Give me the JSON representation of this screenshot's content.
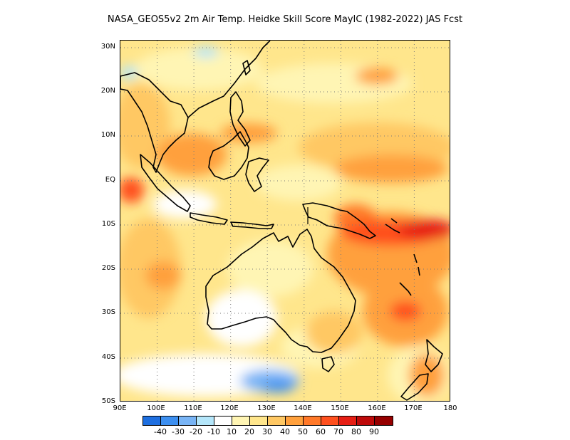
{
  "title": "NASA_GEOS5v2  2m Air Temp. Heidke Skill Score MayIC (1982-2022) JAS Fcst",
  "map": {
    "lat_labels": [
      "30N",
      "20N",
      "10N",
      "EQ",
      "10S",
      "20S",
      "30S",
      "40S",
      "50S"
    ],
    "lon_labels": [
      "90E",
      "100E",
      "110E",
      "120E",
      "130E",
      "140E",
      "150E",
      "160E",
      "170E",
      "180"
    ],
    "grid": true,
    "coastlines": true
  },
  "colorbar": {
    "colors": [
      "#1e6fe0",
      "#3c8ff0",
      "#78b4f5",
      "#b4e6fa",
      "#ffffff",
      "#fff5b4",
      "#ffe68c",
      "#ffc864",
      "#ffa03c",
      "#ff7828",
      "#ff501e",
      "#e61e14",
      "#be0a0a",
      "#960000"
    ],
    "labels": [
      "-40",
      "-30",
      "-20",
      "-10",
      "10",
      "20",
      "30",
      "40",
      "50",
      "60",
      "70",
      "80",
      "90"
    ]
  }
}
